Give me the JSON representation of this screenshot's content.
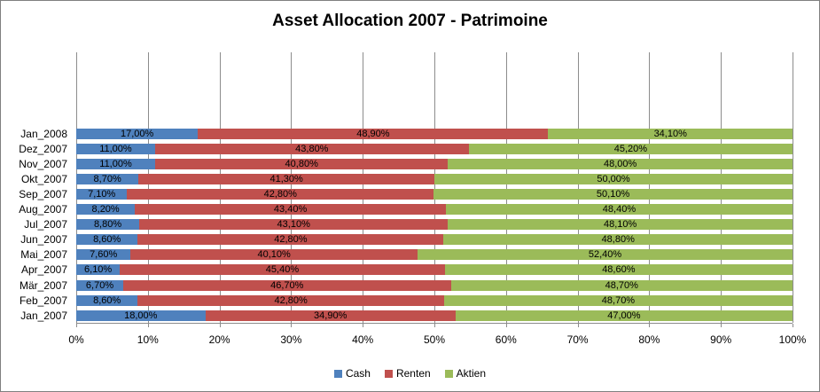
{
  "title": "Asset Allocation 2007 - Patrimoine",
  "colors": {
    "cash": "#4F81BD",
    "renten": "#C0504D",
    "aktien": "#9BBB59",
    "grid": "#8C8C8C",
    "border": "#808080"
  },
  "chart_data": {
    "type": "bar",
    "orientation": "horizontal",
    "stacked": "100-percent",
    "title": "Asset Allocation 2007 - Patrimoine",
    "categories": [
      "Jan_2008",
      "Dez_2007",
      "Nov_2007",
      "Okt_2007",
      "Sep_2007",
      "Aug_2007",
      "Jul_2007",
      "Jun_2007",
      "Mai_2007",
      "Apr_2007",
      "Mär_2007",
      "Feb_2007",
      "Jan_2007"
    ],
    "series": [
      {
        "name": "Cash",
        "color": "#4F81BD",
        "values": [
          17.0,
          11.0,
          11.0,
          8.7,
          7.1,
          8.2,
          8.8,
          8.6,
          7.6,
          6.1,
          6.7,
          8.6,
          18.0
        ],
        "labels": [
          "17,00%",
          "11,00%",
          "11,00%",
          "8,70%",
          "7,10%",
          "8,20%",
          "8,80%",
          "8,60%",
          "7,60%",
          "6,10%",
          "6,70%",
          "8,60%",
          "18,00%"
        ]
      },
      {
        "name": "Renten",
        "color": "#C0504D",
        "values": [
          48.9,
          43.8,
          40.8,
          41.3,
          42.8,
          43.4,
          43.1,
          42.8,
          40.1,
          45.4,
          46.7,
          42.8,
          34.9
        ],
        "labels": [
          "48,90%",
          "43,80%",
          "40,80%",
          "41,30%",
          "42,80%",
          "43,40%",
          "43,10%",
          "42,80%",
          "40,10%",
          "45,40%",
          "46,70%",
          "42,80%",
          "34,90%"
        ]
      },
      {
        "name": "Aktien",
        "color": "#9BBB59",
        "values": [
          34.1,
          45.2,
          48.0,
          50.0,
          50.1,
          48.4,
          48.1,
          48.8,
          52.4,
          48.6,
          48.7,
          48.7,
          47.0
        ],
        "labels": [
          "34,10%",
          "45,20%",
          "48,00%",
          "50,00%",
          "50,10%",
          "48,40%",
          "48,10%",
          "48,80%",
          "52,40%",
          "48,60%",
          "48,70%",
          "48,70%",
          "47,00%"
        ]
      }
    ],
    "x_ticks": [
      "0%",
      "10%",
      "20%",
      "30%",
      "40%",
      "50%",
      "60%",
      "70%",
      "80%",
      "90%",
      "100%"
    ],
    "xlim": [
      0,
      100
    ],
    "grid": "vertical",
    "legend_position": "bottom"
  }
}
